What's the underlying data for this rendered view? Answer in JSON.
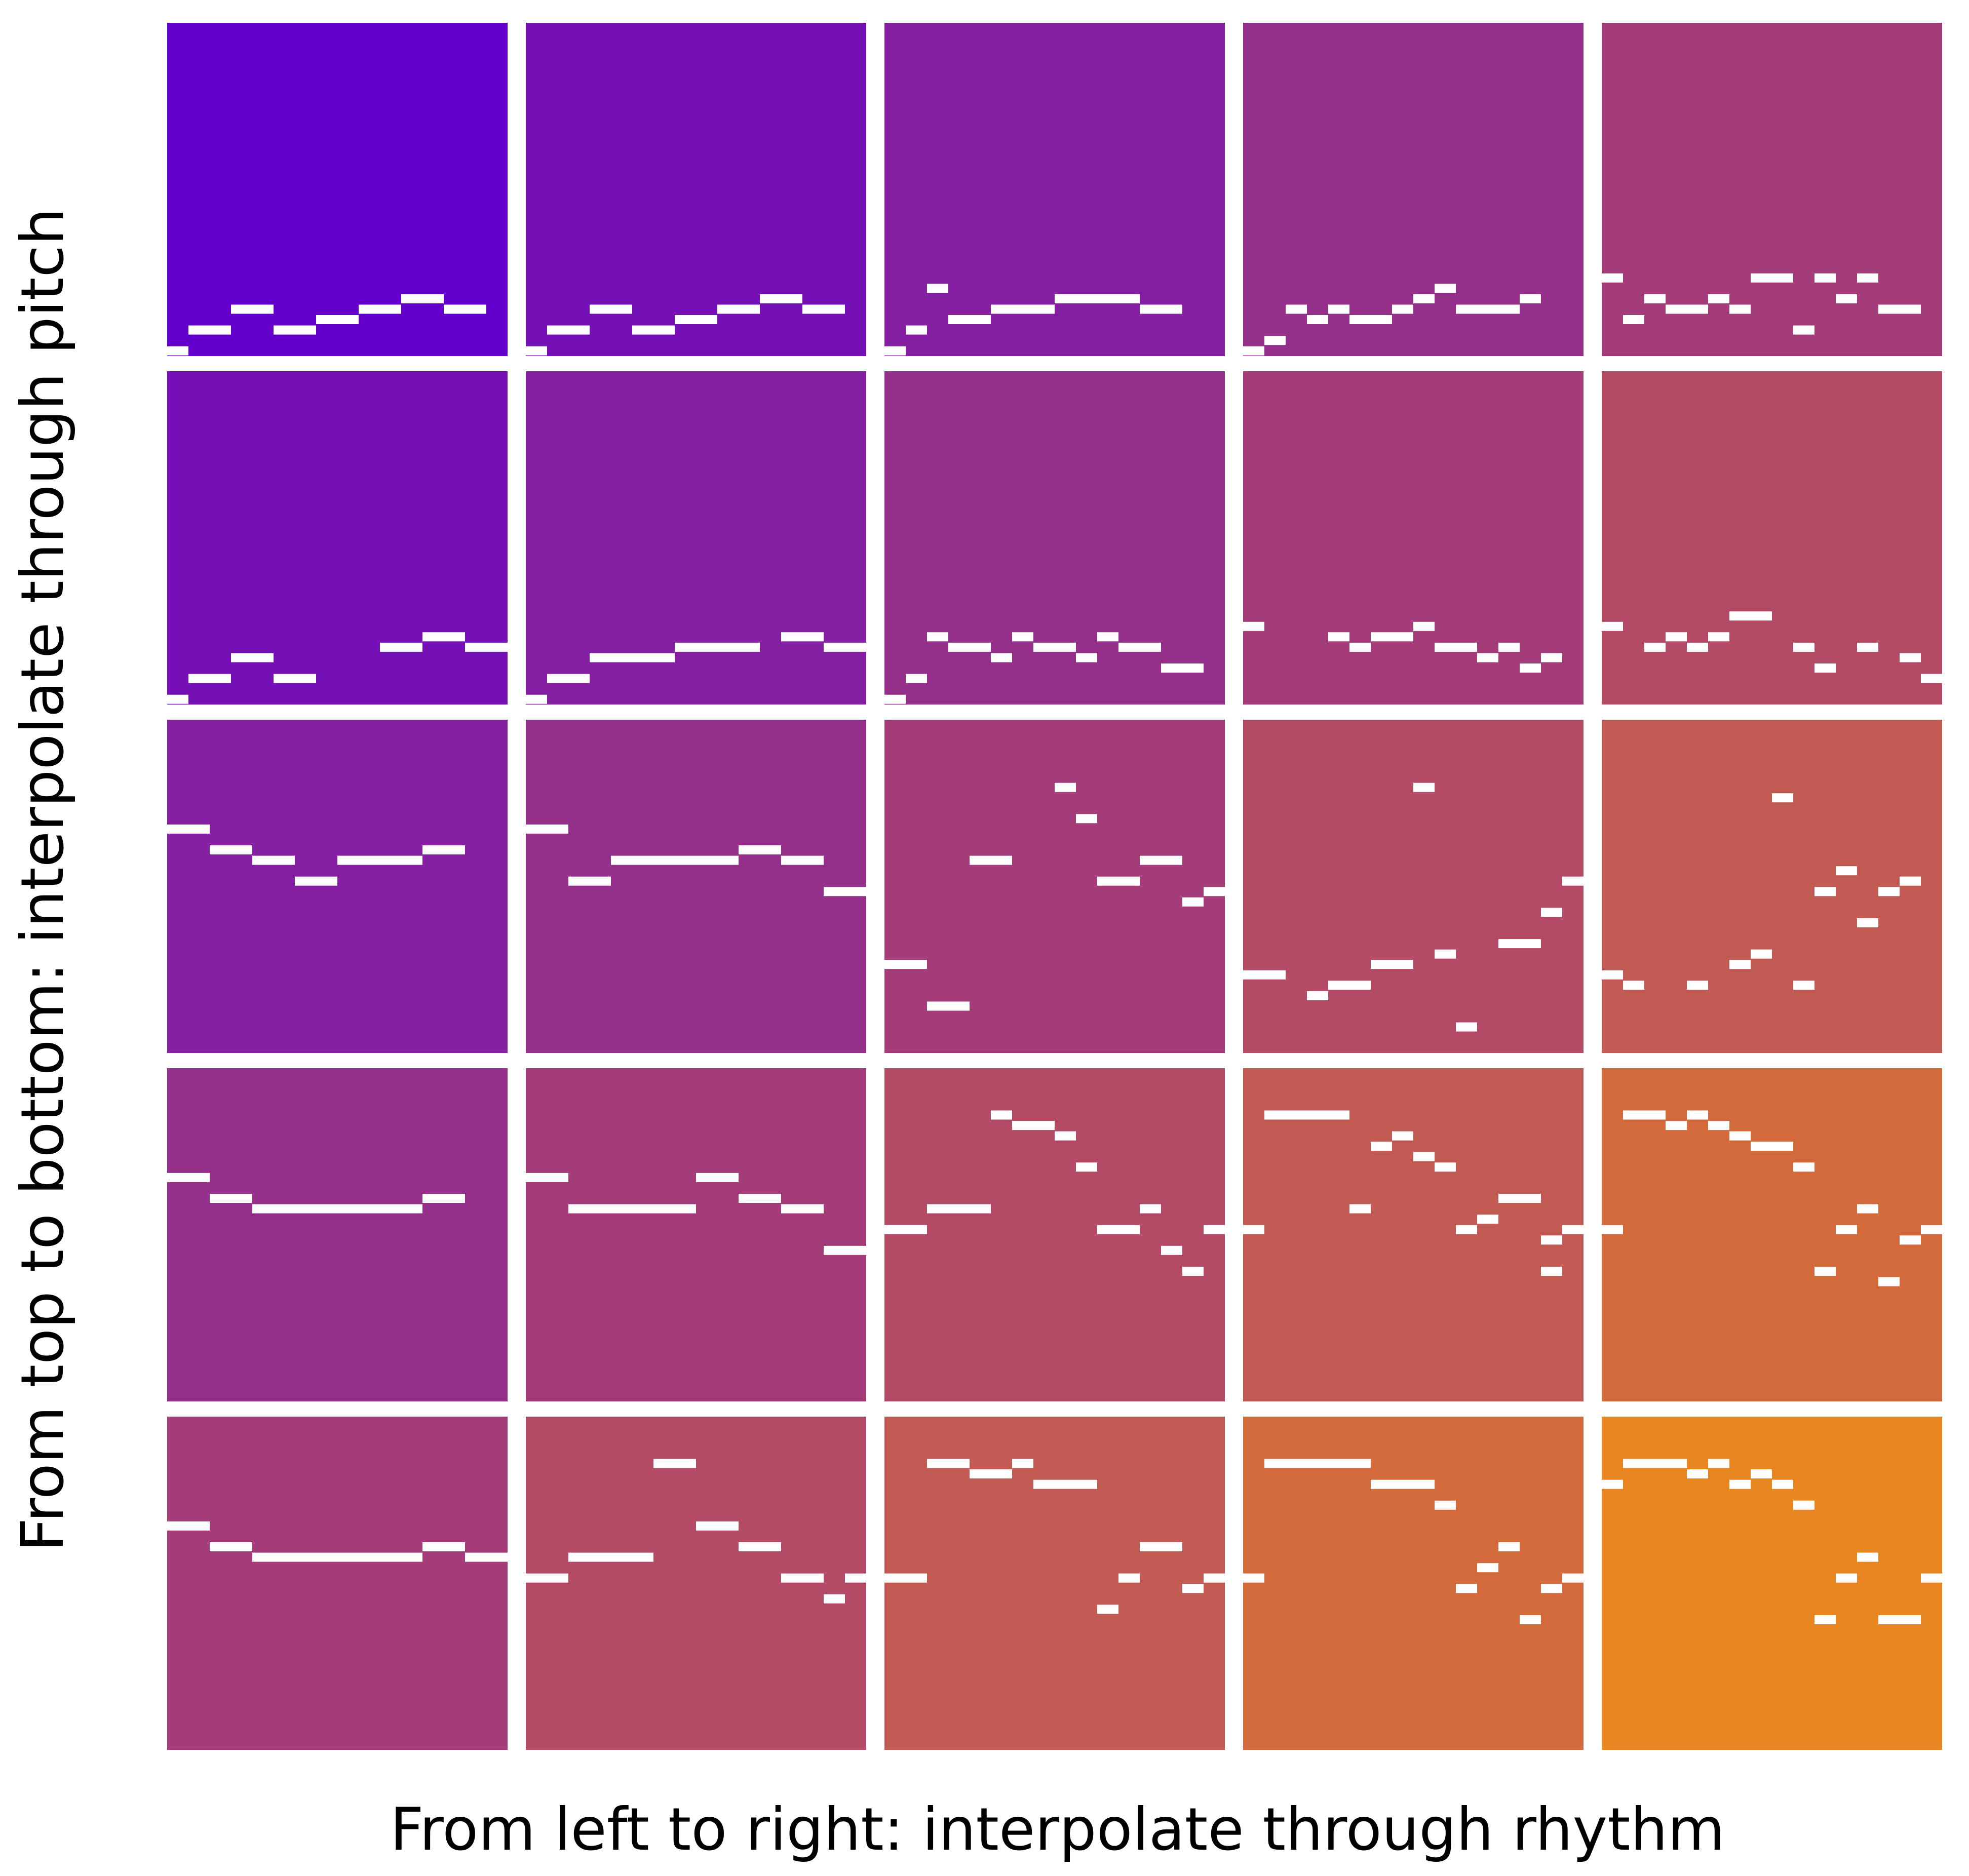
{
  "x_axis_label": "From left to right: interpolate through rhythm",
  "y_axis_label": "From top to bottom: interpolate through pitch",
  "grid": {
    "rows": 5,
    "cols": 5,
    "colors": [
      [
        "#6400cc",
        "#7510b6",
        "#8420a1",
        "#94308a",
        "#a33c78"
      ],
      [
        "#7510b6",
        "#8420a1",
        "#94308a",
        "#a33c78",
        "#b34a66"
      ],
      [
        "#8420a1",
        "#94308a",
        "#a33c78",
        "#b34a66",
        "#c25a54"
      ],
      [
        "#94308a",
        "#a33c78",
        "#b34a66",
        "#c25a54",
        "#d26a3c"
      ],
      [
        "#a33c78",
        "#b34a66",
        "#c25a54",
        "#d26a3c",
        "#e78520"
      ]
    ],
    "note_color": "#ffffff",
    "roll_size": 32,
    "cells": [
      [
        [
          [
            0,
            1,
            31
          ],
          [
            1,
            2,
            29
          ],
          [
            3,
            2,
            27
          ],
          [
            5,
            2,
            29
          ],
          [
            7,
            2,
            28
          ],
          [
            9,
            2,
            27
          ],
          [
            11,
            2,
            26
          ],
          [
            13,
            2,
            27
          ]
        ],
        [
          [
            0,
            1,
            31
          ],
          [
            1,
            2,
            29
          ],
          [
            3,
            2,
            27
          ],
          [
            5,
            2,
            29
          ],
          [
            7,
            2,
            28
          ],
          [
            9,
            2,
            27
          ],
          [
            11,
            2,
            26
          ],
          [
            13,
            2,
            27
          ]
        ],
        [
          [
            0,
            1,
            31
          ],
          [
            1,
            1,
            29
          ],
          [
            2,
            1,
            25
          ],
          [
            3,
            2,
            28
          ],
          [
            5,
            3,
            27
          ],
          [
            8,
            4,
            26
          ],
          [
            12,
            2,
            27
          ]
        ],
        [
          [
            0,
            1,
            31
          ],
          [
            1,
            1,
            30
          ],
          [
            2,
            1,
            27
          ],
          [
            3,
            1,
            28
          ],
          [
            4,
            1,
            27
          ],
          [
            5,
            2,
            28
          ],
          [
            7,
            1,
            27
          ],
          [
            8,
            1,
            26
          ],
          [
            9,
            1,
            25
          ],
          [
            10,
            3,
            27
          ],
          [
            13,
            1,
            26
          ]
        ],
        [
          [
            0,
            1,
            24
          ],
          [
            1,
            1,
            28
          ],
          [
            2,
            1,
            26
          ],
          [
            3,
            2,
            27
          ],
          [
            5,
            1,
            26
          ],
          [
            6,
            1,
            27
          ],
          [
            7,
            2,
            24
          ],
          [
            9,
            1,
            29
          ],
          [
            10,
            1,
            24
          ],
          [
            11,
            1,
            26
          ],
          [
            12,
            1,
            24
          ],
          [
            13,
            2,
            27
          ]
        ]
      ],
      [
        [
          [
            0,
            1,
            31
          ],
          [
            1,
            2,
            29
          ],
          [
            3,
            2,
            27
          ],
          [
            5,
            2,
            29
          ],
          [
            10,
            2,
            26
          ],
          [
            12,
            2,
            25
          ],
          [
            14,
            2,
            26
          ]
        ],
        [
          [
            0,
            1,
            31
          ],
          [
            1,
            2,
            29
          ],
          [
            3,
            4,
            27
          ],
          [
            7,
            4,
            26
          ],
          [
            12,
            2,
            25
          ],
          [
            14,
            2,
            26
          ]
        ],
        [
          [
            0,
            1,
            31
          ],
          [
            1,
            1,
            29
          ],
          [
            2,
            1,
            25
          ],
          [
            3,
            2,
            26
          ],
          [
            5,
            1,
            27
          ],
          [
            6,
            1,
            25
          ],
          [
            7,
            2,
            26
          ],
          [
            9,
            1,
            27
          ],
          [
            10,
            1,
            25
          ],
          [
            11,
            2,
            26
          ],
          [
            13,
            2,
            28
          ]
        ],
        [
          [
            0,
            1,
            24
          ],
          [
            4,
            1,
            25
          ],
          [
            5,
            1,
            26
          ],
          [
            6,
            2,
            25
          ],
          [
            8,
            1,
            24
          ],
          [
            9,
            2,
            26
          ],
          [
            11,
            1,
            27
          ],
          [
            12,
            1,
            26
          ],
          [
            13,
            1,
            28
          ],
          [
            14,
            1,
            27
          ]
        ],
        [
          [
            0,
            1,
            24
          ],
          [
            2,
            1,
            26
          ],
          [
            3,
            1,
            25
          ],
          [
            4,
            1,
            26
          ],
          [
            5,
            1,
            25
          ],
          [
            6,
            2,
            23
          ],
          [
            9,
            1,
            26
          ],
          [
            10,
            1,
            28
          ],
          [
            12,
            1,
            26
          ],
          [
            14,
            1,
            27
          ],
          [
            15,
            1,
            29
          ]
        ]
      ],
      [
        [
          [
            0,
            2,
            10
          ],
          [
            2,
            2,
            12
          ],
          [
            4,
            2,
            13
          ],
          [
            6,
            2,
            15
          ],
          [
            8,
            4,
            13
          ],
          [
            12,
            2,
            12
          ]
        ],
        [
          [
            0,
            2,
            10
          ],
          [
            2,
            2,
            15
          ],
          [
            4,
            6,
            13
          ],
          [
            10,
            2,
            12
          ],
          [
            12,
            2,
            13
          ],
          [
            14,
            2,
            16
          ]
        ],
        [
          [
            0,
            2,
            23
          ],
          [
            2,
            2,
            27
          ],
          [
            4,
            2,
            13
          ],
          [
            8,
            1,
            6
          ],
          [
            9,
            1,
            9
          ],
          [
            10,
            2,
            15
          ],
          [
            12,
            2,
            13
          ],
          [
            14,
            1,
            17
          ],
          [
            15,
            1,
            16
          ]
        ],
        [
          [
            0,
            2,
            24
          ],
          [
            3,
            1,
            26
          ],
          [
            4,
            2,
            25
          ],
          [
            6,
            2,
            23
          ],
          [
            9,
            1,
            22
          ],
          [
            10,
            1,
            29
          ],
          [
            12,
            2,
            21
          ],
          [
            14,
            1,
            18
          ],
          [
            15,
            1,
            15
          ],
          [
            8,
            1,
            6
          ]
        ],
        [
          [
            0,
            1,
            24
          ],
          [
            1,
            1,
            25
          ],
          [
            4,
            1,
            25
          ],
          [
            6,
            1,
            23
          ],
          [
            7,
            1,
            22
          ],
          [
            8,
            1,
            7
          ],
          [
            9,
            1,
            25
          ],
          [
            10,
            1,
            16
          ],
          [
            11,
            1,
            14
          ],
          [
            12,
            1,
            19
          ],
          [
            13,
            1,
            16
          ],
          [
            14,
            1,
            15
          ]
        ]
      ],
      [
        [
          [
            0,
            2,
            10
          ],
          [
            2,
            2,
            12
          ],
          [
            4,
            8,
            13
          ],
          [
            12,
            2,
            12
          ]
        ],
        [
          [
            0,
            2,
            10
          ],
          [
            2,
            6,
            13
          ],
          [
            8,
            2,
            10
          ],
          [
            10,
            2,
            12
          ],
          [
            12,
            2,
            13
          ],
          [
            14,
            2,
            17
          ]
        ],
        [
          [
            0,
            2,
            15
          ],
          [
            2,
            3,
            13
          ],
          [
            5,
            1,
            4
          ],
          [
            6,
            2,
            5
          ],
          [
            8,
            1,
            6
          ],
          [
            9,
            1,
            9
          ],
          [
            10,
            2,
            15
          ],
          [
            12,
            1,
            13
          ],
          [
            13,
            1,
            17
          ],
          [
            14,
            1,
            19
          ],
          [
            15,
            1,
            15
          ]
        ],
        [
          [
            0,
            1,
            15
          ],
          [
            1,
            4,
            4
          ],
          [
            5,
            1,
            13
          ],
          [
            6,
            1,
            7
          ],
          [
            7,
            1,
            6
          ],
          [
            8,
            1,
            8
          ],
          [
            9,
            1,
            9
          ],
          [
            10,
            1,
            15
          ],
          [
            11,
            1,
            14
          ],
          [
            12,
            2,
            12
          ],
          [
            14,
            1,
            19
          ],
          [
            14,
            1,
            16
          ],
          [
            15,
            1,
            15
          ]
        ],
        [
          [
            0,
            1,
            15
          ],
          [
            1,
            2,
            4
          ],
          [
            3,
            1,
            5
          ],
          [
            4,
            1,
            4
          ],
          [
            5,
            1,
            5
          ],
          [
            6,
            1,
            6
          ],
          [
            7,
            2,
            7
          ],
          [
            9,
            1,
            9
          ],
          [
            10,
            1,
            19
          ],
          [
            11,
            1,
            15
          ],
          [
            12,
            1,
            13
          ],
          [
            13,
            1,
            20
          ],
          [
            14,
            1,
            16
          ],
          [
            15,
            1,
            15
          ]
        ]
      ],
      [
        [
          [
            0,
            2,
            10
          ],
          [
            2,
            2,
            12
          ],
          [
            4,
            8,
            13
          ],
          [
            12,
            2,
            12
          ],
          [
            14,
            2,
            13
          ]
        ],
        [
          [
            0,
            2,
            15
          ],
          [
            2,
            4,
            13
          ],
          [
            6,
            2,
            4
          ],
          [
            8,
            2,
            10
          ],
          [
            10,
            2,
            12
          ],
          [
            12,
            2,
            15
          ],
          [
            14,
            1,
            17
          ],
          [
            15,
            1,
            15
          ]
        ],
        [
          [
            0,
            2,
            15
          ],
          [
            2,
            2,
            4
          ],
          [
            4,
            2,
            5
          ],
          [
            6,
            1,
            4
          ],
          [
            7,
            3,
            6
          ],
          [
            10,
            1,
            18
          ],
          [
            11,
            1,
            15
          ],
          [
            12,
            2,
            12
          ],
          [
            14,
            1,
            16
          ],
          [
            15,
            1,
            15
          ]
        ],
        [
          [
            0,
            1,
            15
          ],
          [
            1,
            5,
            4
          ],
          [
            6,
            3,
            6
          ],
          [
            9,
            1,
            8
          ],
          [
            10,
            1,
            16
          ],
          [
            11,
            1,
            14
          ],
          [
            12,
            1,
            12
          ],
          [
            13,
            1,
            19
          ],
          [
            14,
            1,
            16
          ],
          [
            15,
            1,
            15
          ]
        ],
        [
          [
            0,
            1,
            6
          ],
          [
            1,
            3,
            4
          ],
          [
            4,
            1,
            5
          ],
          [
            5,
            1,
            4
          ],
          [
            6,
            1,
            6
          ],
          [
            7,
            1,
            5
          ],
          [
            8,
            1,
            6
          ],
          [
            9,
            1,
            8
          ],
          [
            10,
            1,
            19
          ],
          [
            11,
            1,
            15
          ],
          [
            12,
            1,
            13
          ],
          [
            13,
            2,
            19
          ],
          [
            15,
            2,
            15
          ]
        ]
      ]
    ]
  }
}
